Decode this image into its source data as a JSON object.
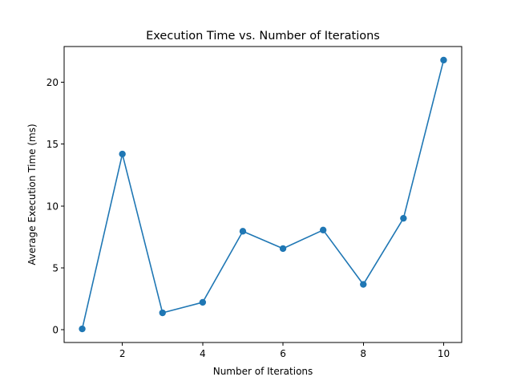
{
  "chart_data": {
    "type": "line",
    "title": "Execution Time vs. Number of Iterations",
    "xlabel": "Number of Iterations",
    "ylabel": "Average Execution Time (ms)",
    "x": [
      1,
      2,
      3,
      4,
      5,
      6,
      7,
      8,
      9,
      10
    ],
    "series": [
      {
        "values": [
          0.05,
          14.2,
          1.35,
          2.2,
          7.95,
          6.55,
          8.05,
          3.65,
          9.0,
          21.8
        ],
        "color": "#1f77b4",
        "marker": "circle"
      }
    ],
    "xlim": [
      0.55,
      10.45
    ],
    "ylim": [
      -1.05,
      22.9
    ],
    "xticks": [
      2,
      4,
      6,
      8,
      10
    ],
    "yticks": [
      0,
      5,
      10,
      15,
      20
    ],
    "grid": false,
    "legend": "none"
  }
}
